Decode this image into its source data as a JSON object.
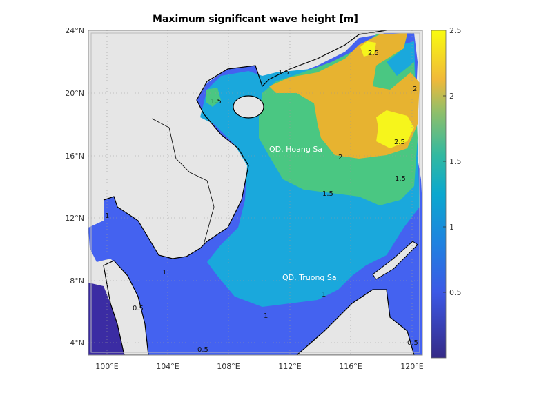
{
  "chart_data": {
    "type": "heatmap",
    "title": "Maximum significant wave height [m]",
    "xlabel": "",
    "ylabel": "",
    "x_ticks": [
      "100°E",
      "104°E",
      "108°E",
      "112°E",
      "116°E",
      "120°E"
    ],
    "y_ticks": [
      "24°N",
      "20°N",
      "16°N",
      "12°N",
      "8°N",
      "4°N"
    ],
    "xlim_deg_E": [
      98.8,
      120.7
    ],
    "ylim_deg_N": [
      3.2,
      24.2
    ],
    "colorbar": {
      "range": [
        0,
        2.5
      ],
      "ticks": [
        "0.5",
        "1",
        "1.5",
        "2",
        "2.5"
      ],
      "colormap": "parula"
    },
    "contour_levels": [
      0.5,
      1,
      1.5,
      2,
      2.5
    ],
    "contour_labels": [
      "1.5",
      "1.5",
      "1.5",
      "2",
      "2",
      "2.5",
      "2.5",
      "1",
      "1",
      "1",
      "1",
      "0.5",
      "0.5",
      "0.5",
      "1.5"
    ],
    "place_labels": [
      "QD. Hoang Sa",
      "QD. Truong Sa"
    ],
    "grid": true,
    "colors": {
      "land": "#e6e6e6",
      "lt0.5": "#3b2ca3",
      "0.5-1": "#4462f0",
      "1-1.5": "#1aa8dc",
      "1.5-2": "#4ac782",
      "2-2.5": "#e7b330",
      "gt2.5": "#f6f51c"
    }
  }
}
